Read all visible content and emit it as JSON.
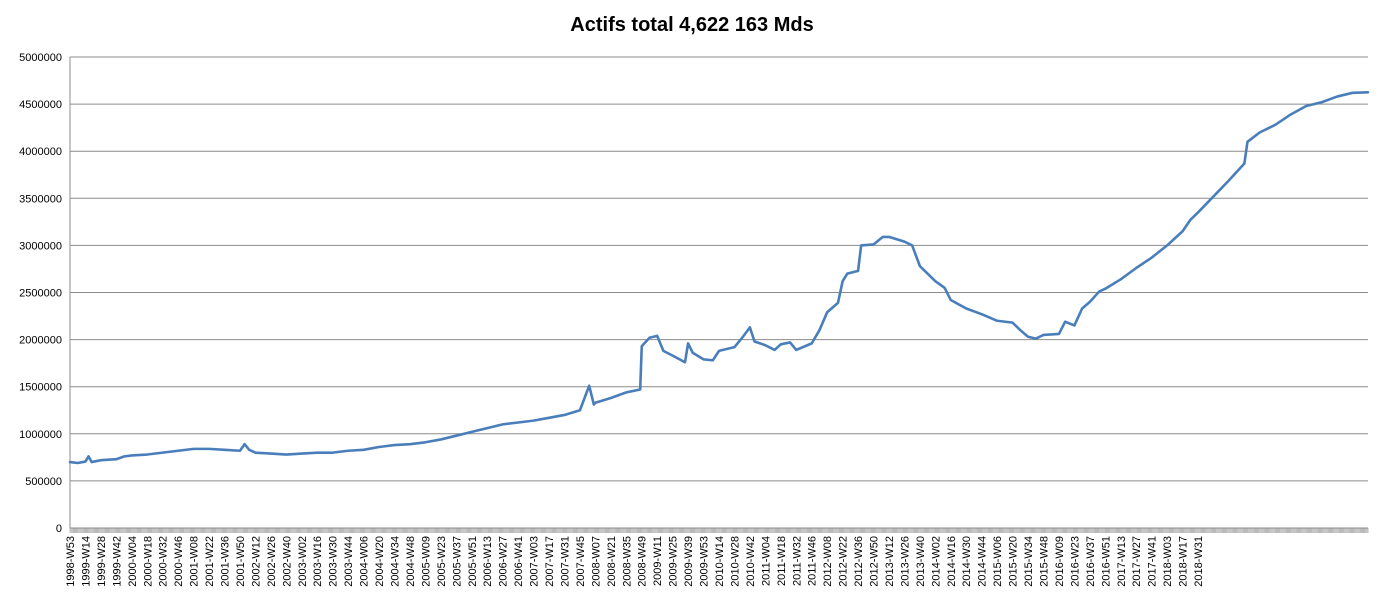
{
  "chart_data": {
    "type": "line",
    "title": "Actifs total 4,622 163 Mds",
    "xlabel": "",
    "ylabel": "",
    "ylim": [
      0,
      5000000
    ],
    "yticks": [
      0,
      500000,
      1000000,
      1500000,
      2000000,
      2500000,
      3000000,
      3500000,
      4000000,
      4500000,
      5000000
    ],
    "ytick_labels": [
      "0",
      "500000",
      "1000000",
      "1500000",
      "2000000",
      "2500000",
      "3000000",
      "3500000",
      "4000000",
      "4500000",
      "5000000"
    ],
    "grid": true,
    "legend": "none",
    "line_color": "#4a7ebb",
    "x_ticks": [
      "1998-W53",
      "1999-W14",
      "1999-W28",
      "1999-W42",
      "2000-W04",
      "2000-W18",
      "2000-W32",
      "2000-W46",
      "2001-W08",
      "2001-W22",
      "2001-W36",
      "2001-W50",
      "2002-W12",
      "2002-W26",
      "2002-W40",
      "2003-W02",
      "2003-W16",
      "2003-W30",
      "2003-W44",
      "2004-W06",
      "2004-W20",
      "2004-W34",
      "2004-W48",
      "2005-W09",
      "2005-W23",
      "2005-W37",
      "2005-W51",
      "2006-W13",
      "2006-W27",
      "2006-W41",
      "2007-W03",
      "2007-W17",
      "2007-W31",
      "2007-W45",
      "2008-W07",
      "2008-W21",
      "2008-W35",
      "2008-W49",
      "2009-W11",
      "2009-W25",
      "2009-W39",
      "2009-W53",
      "2010-W14",
      "2010-W28",
      "2010-W42",
      "2011-W04",
      "2011-W18",
      "2011-W32",
      "2011-W46",
      "2012-W08",
      "2012-W22",
      "2012-W36",
      "2012-W50",
      "2013-W12",
      "2013-W26",
      "2013-W40",
      "2014-W02",
      "2014-W16",
      "2014-W30",
      "2014-W44",
      "2015-W06",
      "2015-W20",
      "2015-W34",
      "2015-W48",
      "2016-W09",
      "2016-W23",
      "2016-W37",
      "2016-W51",
      "2017-W13",
      "2017-W27",
      "2017-W41",
      "2018-W03",
      "2018-W17",
      "2018-W31"
    ],
    "series": [
      {
        "values": [
          [
            0,
            700000
          ],
          [
            0.5,
            690000
          ],
          [
            1,
            705000
          ],
          [
            1.2,
            760000
          ],
          [
            1.4,
            700000
          ],
          [
            2,
            720000
          ],
          [
            3,
            730000
          ],
          [
            3.5,
            760000
          ],
          [
            4,
            770000
          ],
          [
            5,
            780000
          ],
          [
            6,
            800000
          ],
          [
            7,
            820000
          ],
          [
            8,
            840000
          ],
          [
            9,
            840000
          ],
          [
            10,
            830000
          ],
          [
            11,
            820000
          ],
          [
            11.3,
            890000
          ],
          [
            11.6,
            830000
          ],
          [
            12,
            800000
          ],
          [
            13,
            790000
          ],
          [
            14,
            780000
          ],
          [
            15,
            790000
          ],
          [
            16,
            800000
          ],
          [
            17,
            800000
          ],
          [
            18,
            820000
          ],
          [
            19,
            830000
          ],
          [
            20,
            860000
          ],
          [
            21,
            880000
          ],
          [
            22,
            890000
          ],
          [
            23,
            910000
          ],
          [
            24,
            940000
          ],
          [
            25,
            980000
          ],
          [
            26,
            1020000
          ],
          [
            27,
            1060000
          ],
          [
            28,
            1100000
          ],
          [
            29,
            1120000
          ],
          [
            30,
            1140000
          ],
          [
            31,
            1170000
          ],
          [
            32,
            1200000
          ],
          [
            33,
            1250000
          ],
          [
            33.6,
            1510000
          ],
          [
            33.9,
            1310000
          ],
          [
            34,
            1330000
          ],
          [
            35,
            1380000
          ],
          [
            36,
            1440000
          ],
          [
            36.9,
            1470000
          ],
          [
            37,
            1930000
          ],
          [
            37.5,
            2020000
          ],
          [
            38,
            2040000
          ],
          [
            38.4,
            1880000
          ],
          [
            39,
            1830000
          ],
          [
            39.8,
            1760000
          ],
          [
            40,
            1960000
          ],
          [
            40.3,
            1860000
          ],
          [
            41,
            1790000
          ],
          [
            41.6,
            1780000
          ],
          [
            42,
            1880000
          ],
          [
            43,
            1920000
          ],
          [
            43.5,
            2020000
          ],
          [
            44,
            2130000
          ],
          [
            44.3,
            1980000
          ],
          [
            45,
            1940000
          ],
          [
            45.6,
            1890000
          ],
          [
            46,
            1950000
          ],
          [
            46.6,
            1970000
          ],
          [
            47,
            1890000
          ],
          [
            48,
            1960000
          ],
          [
            48.5,
            2100000
          ],
          [
            49,
            2290000
          ],
          [
            49.7,
            2390000
          ],
          [
            50,
            2620000
          ],
          [
            50.3,
            2700000
          ],
          [
            51,
            2730000
          ],
          [
            51.2,
            3000000
          ],
          [
            52,
            3010000
          ],
          [
            52.6,
            3090000
          ],
          [
            53,
            3090000
          ],
          [
            54,
            3040000
          ],
          [
            54.5,
            3000000
          ],
          [
            55,
            2780000
          ],
          [
            56,
            2620000
          ],
          [
            56.6,
            2550000
          ],
          [
            57,
            2420000
          ],
          [
            58,
            2330000
          ],
          [
            59,
            2270000
          ],
          [
            60,
            2200000
          ],
          [
            61,
            2180000
          ],
          [
            61.5,
            2100000
          ],
          [
            62,
            2030000
          ],
          [
            62.5,
            2010000
          ],
          [
            63,
            2050000
          ],
          [
            64,
            2060000
          ],
          [
            64.4,
            2190000
          ],
          [
            65,
            2150000
          ],
          [
            65.5,
            2330000
          ],
          [
            66,
            2400000
          ],
          [
            66.6,
            2510000
          ],
          [
            67,
            2540000
          ],
          [
            68,
            2640000
          ],
          [
            69,
            2760000
          ],
          [
            70,
            2870000
          ],
          [
            71,
            3000000
          ],
          [
            72,
            3150000
          ],
          [
            72.5,
            3270000
          ],
          [
            73,
            3350000
          ],
          [
            74,
            3520000
          ],
          [
            75,
            3690000
          ],
          [
            76,
            3870000
          ],
          [
            76.2,
            4100000
          ],
          [
            77,
            4200000
          ],
          [
            78,
            4280000
          ],
          [
            79,
            4390000
          ],
          [
            80,
            4480000
          ],
          [
            81,
            4520000
          ],
          [
            82,
            4580000
          ],
          [
            83,
            4620000
          ],
          [
            84,
            4625000
          ]
        ]
      }
    ]
  }
}
